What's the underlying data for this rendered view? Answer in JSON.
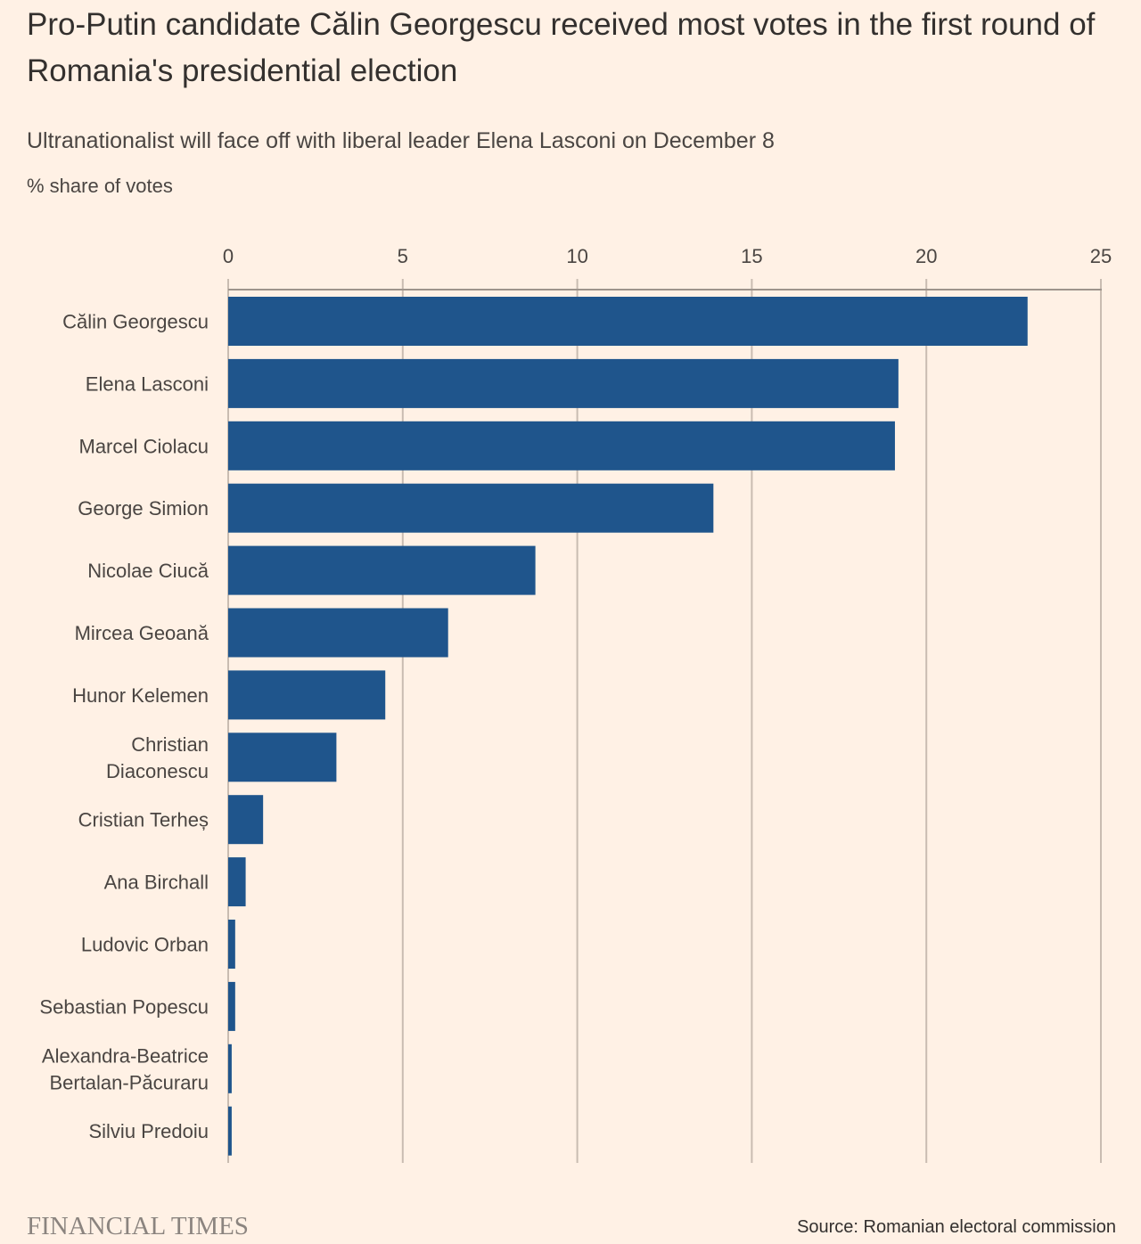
{
  "header": {
    "title": "Pro-Putin candidate Călin Georgescu received most votes in the first round of Romania's presidential election",
    "subtitle": "Ultranationalist will face off with liberal leader Elena Lasconi on December 8",
    "unit_label": "% share of votes"
  },
  "footer": {
    "logo": "FINANCIAL TIMES",
    "source": "Source: Romanian electoral commission"
  },
  "colors": {
    "background": "#fff1e5",
    "bar": "#1f558c",
    "grid": "#c9bcb1",
    "axis": "#9e948c"
  },
  "chart_data": {
    "type": "bar",
    "orientation": "horizontal",
    "title": "Pro-Putin candidate Călin Georgescu received most votes in the first round of Romania's presidential election",
    "subtitle": "Ultranationalist will face off with liberal leader Elena Lasconi on December 8",
    "xlabel": "% share of votes",
    "ylabel": "",
    "xlim": [
      0,
      25
    ],
    "x_ticks": [
      0,
      5,
      10,
      15,
      20,
      25
    ],
    "x_tick_labels": [
      "0",
      "5",
      "10",
      "15",
      "20",
      "25"
    ],
    "x_axis_position": "top",
    "grid": true,
    "categories": [
      [
        "Călin Georgescu"
      ],
      [
        "Elena Lasconi"
      ],
      [
        "Marcel Ciolacu"
      ],
      [
        "George Simion"
      ],
      [
        "Nicolae Ciucă"
      ],
      [
        "Mircea Geoană"
      ],
      [
        "Hunor Kelemen"
      ],
      [
        "Christian",
        "Diaconescu"
      ],
      [
        "Cristian Terheș"
      ],
      [
        "Ana Birchall"
      ],
      [
        "Ludovic Orban"
      ],
      [
        "Sebastian Popescu"
      ],
      [
        "Alexandra-Beatrice",
        "Bertalan-Păcuraru"
      ],
      [
        "Silviu Predoiu"
      ]
    ],
    "values": [
      22.9,
      19.2,
      19.1,
      13.9,
      8.8,
      6.3,
      4.5,
      3.1,
      1.0,
      0.5,
      0.2,
      0.2,
      0.1,
      0.1
    ]
  }
}
